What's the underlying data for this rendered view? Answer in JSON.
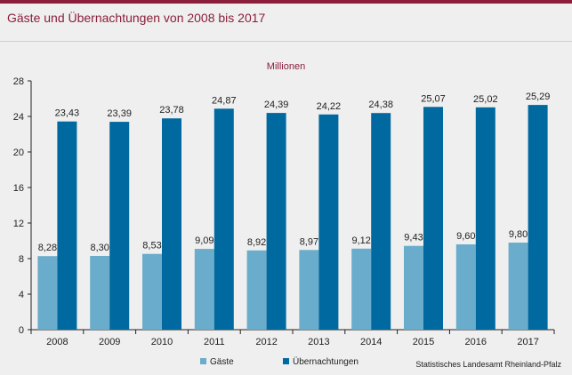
{
  "title": "Gäste und Übernachtungen von 2008 bis 2017",
  "source": "Statistisches Landesamt Rheinland-Pfalz",
  "colors": {
    "accent": "#8b1e3a",
    "gaeste": "#6aaccb",
    "uebernachtungen": "#0069a0"
  },
  "chart_data": {
    "type": "bar",
    "title": "",
    "unit_label": "Millionen",
    "xlabel": "",
    "ylabel": "",
    "categories": [
      "2008",
      "2009",
      "2010",
      "2011",
      "2012",
      "2013",
      "2014",
      "2015",
      "2016",
      "2017"
    ],
    "series": [
      {
        "name": "Gäste",
        "values": [
          8.28,
          8.3,
          8.53,
          9.09,
          8.92,
          8.97,
          9.12,
          9.43,
          9.6,
          9.8
        ],
        "labels": [
          "8,28",
          "8,30",
          "8,53",
          "9,09",
          "8,92",
          "8,97",
          "9,12",
          "9,43",
          "9,60",
          "9,80"
        ]
      },
      {
        "name": "Übernachtungen",
        "values": [
          23.43,
          23.39,
          23.78,
          24.87,
          24.39,
          24.22,
          24.38,
          25.07,
          25.02,
          25.29
        ],
        "labels": [
          "23,43",
          "23,39",
          "23,78",
          "24,87",
          "24,39",
          "24,22",
          "24,38",
          "25,07",
          "25,02",
          "25,29"
        ]
      }
    ],
    "ylim": [
      0,
      28
    ],
    "yticks": [
      0,
      4,
      8,
      12,
      16,
      20,
      24,
      28
    ],
    "grid": false,
    "legend_position": "bottom"
  }
}
